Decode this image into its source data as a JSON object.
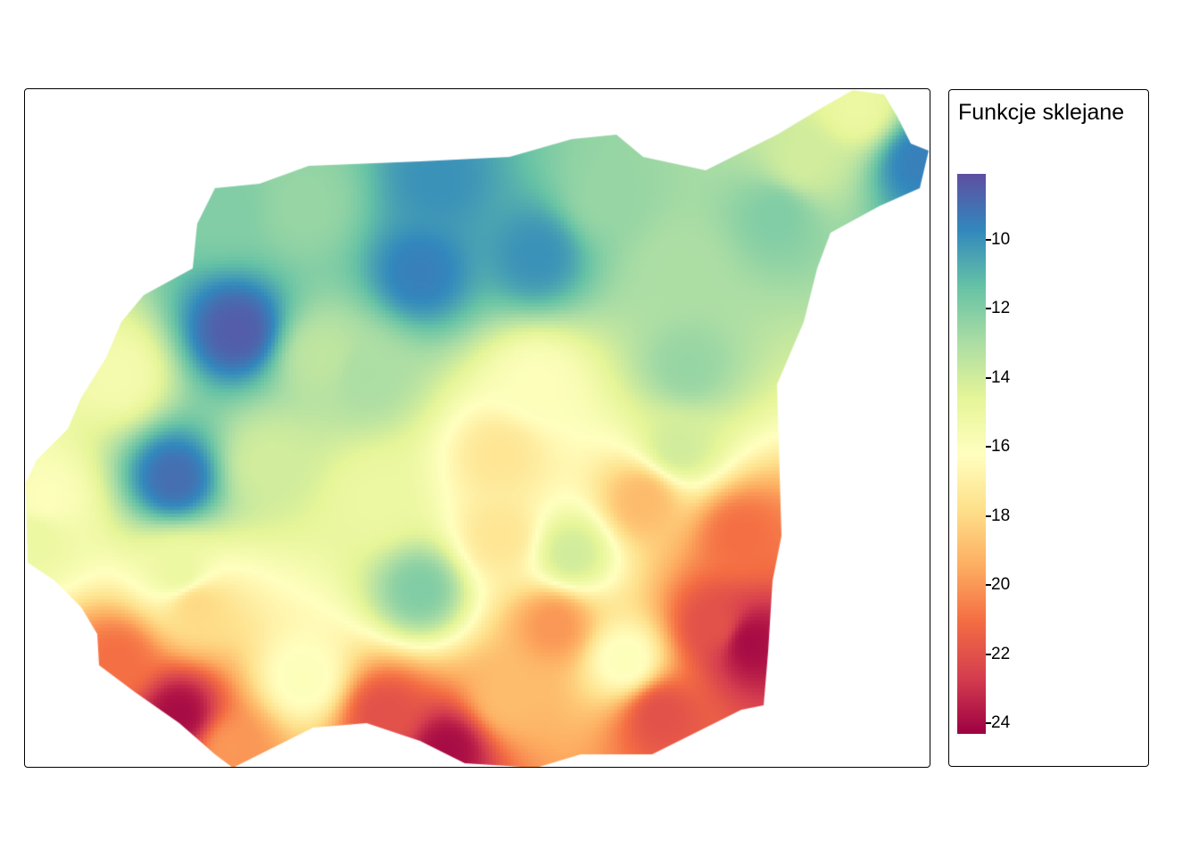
{
  "legend": {
    "title": "Funkcje sklejane",
    "ticks": [
      "10",
      "12",
      "14",
      "16",
      "18",
      "20",
      "22",
      "24"
    ],
    "range": [
      8.1,
      24.3
    ],
    "palette": [
      "#5E4FA2",
      "#3288BD",
      "#66C2A5",
      "#ABDDA4",
      "#E6F598",
      "#FFFFBF",
      "#FEE08B",
      "#FDAE61",
      "#F46D43",
      "#D53E4F",
      "#9E0142"
    ]
  }
}
